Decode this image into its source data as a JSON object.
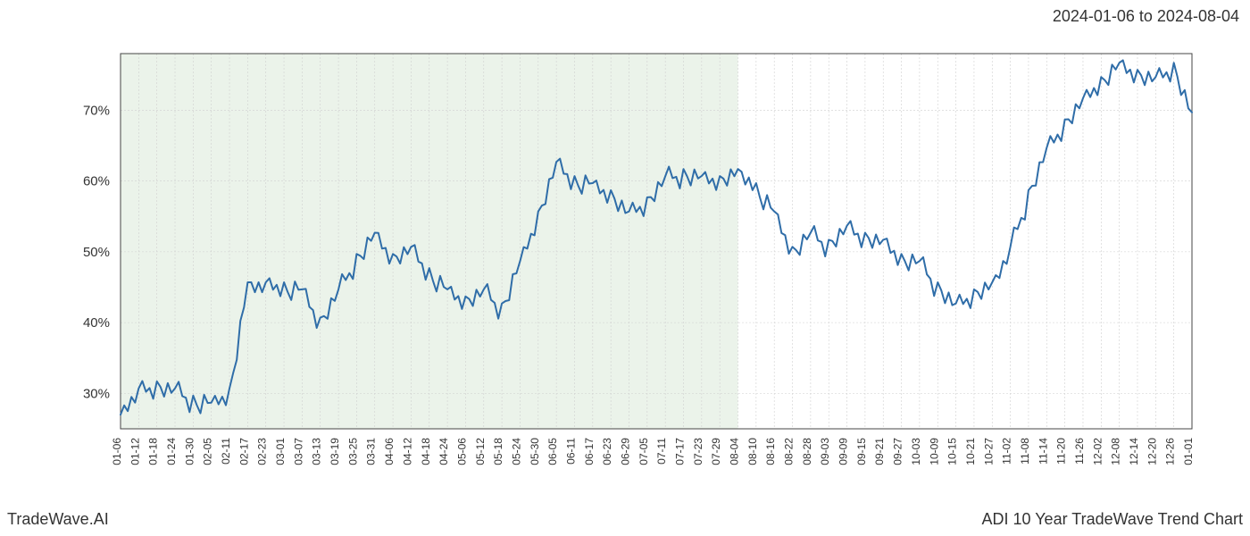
{
  "header": {
    "date_range": "2024-01-06 to 2024-08-04"
  },
  "footer": {
    "left": "TradeWave.AI",
    "right": "ADI 10 Year TradeWave Trend Chart"
  },
  "chart": {
    "type": "line",
    "background_color": "#ffffff",
    "grid_color": "#d0d0d0",
    "border_color": "#444444",
    "line_color": "#2f6da8",
    "line_width": 2,
    "highlight_fill": "#c7dcc2",
    "highlight_opacity": 0.35,
    "highlight_start": "01-06",
    "highlight_end": "08-04",
    "y_axis": {
      "min": 25,
      "max": 78,
      "ticks": [
        30,
        40,
        50,
        60,
        70
      ],
      "tick_labels": [
        "30%",
        "40%",
        "50%",
        "60%",
        "70%"
      ],
      "label_fontsize": 15
    },
    "x_axis": {
      "ticks": [
        "01-06",
        "01-12",
        "01-18",
        "01-24",
        "01-30",
        "02-05",
        "02-11",
        "02-17",
        "02-23",
        "03-01",
        "03-07",
        "03-13",
        "03-19",
        "03-25",
        "03-31",
        "04-06",
        "04-12",
        "04-18",
        "04-24",
        "05-06",
        "05-12",
        "05-18",
        "05-24",
        "05-30",
        "06-05",
        "06-11",
        "06-17",
        "06-23",
        "06-29",
        "07-05",
        "07-11",
        "07-17",
        "07-23",
        "07-29",
        "08-04",
        "08-10",
        "08-16",
        "08-22",
        "08-28",
        "09-03",
        "09-09",
        "09-15",
        "09-21",
        "09-27",
        "10-03",
        "10-09",
        "10-15",
        "10-21",
        "10-27",
        "11-02",
        "11-08",
        "11-14",
        "11-20",
        "11-26",
        "12-02",
        "12-08",
        "12-14",
        "12-20",
        "12-26",
        "01-01"
      ],
      "label_fontsize": 12
    },
    "series": {
      "x": [
        "01-06",
        "01-12",
        "01-18",
        "01-24",
        "01-30",
        "02-05",
        "02-11",
        "02-17",
        "02-23",
        "03-01",
        "03-07",
        "03-13",
        "03-19",
        "03-25",
        "03-31",
        "04-06",
        "04-12",
        "04-18",
        "04-24",
        "05-06",
        "05-12",
        "05-18",
        "05-24",
        "05-30",
        "06-05",
        "06-11",
        "06-17",
        "06-23",
        "06-29",
        "07-05",
        "07-11",
        "07-17",
        "07-23",
        "07-29",
        "08-04",
        "08-10",
        "08-16",
        "08-22",
        "08-28",
        "09-03",
        "09-09",
        "09-15",
        "09-21",
        "09-27",
        "10-03",
        "10-09",
        "10-15",
        "10-21",
        "10-27",
        "11-02",
        "11-08",
        "11-14",
        "11-20",
        "11-26",
        "12-02",
        "12-08",
        "12-14",
        "12-20",
        "12-26",
        "01-01"
      ],
      "y": [
        27,
        30,
        31,
        30,
        29,
        28,
        30,
        45,
        45,
        45,
        44,
        40,
        44,
        49,
        52,
        49,
        50,
        47,
        44,
        43,
        44,
        42,
        48,
        55,
        62,
        60,
        59,
        58,
        55,
        57,
        60,
        61,
        60,
        60,
        61,
        59,
        55,
        50,
        52,
        51,
        53,
        52,
        51,
        49,
        48,
        45,
        42,
        44,
        45,
        50,
        58,
        64,
        68,
        71,
        74,
        76,
        75,
        74,
        76,
        69
      ],
      "jitter": [
        0,
        1.5,
        -1,
        2,
        -2,
        1,
        -1.5,
        0,
        1,
        -2,
        1.5,
        -1,
        2,
        -1.5,
        1,
        -1,
        1.5,
        -2,
        1,
        -1,
        2,
        -1.5,
        1,
        -1,
        1.5,
        -2,
        1,
        -1,
        1.5,
        -1,
        2,
        -1.5,
        1,
        -1,
        0,
        -2,
        1,
        -1.5,
        2,
        -1,
        1.5,
        -1,
        1,
        -1.5,
        2,
        -1,
        1.5,
        -1,
        0,
        2,
        -1,
        1.5,
        -1,
        1,
        -1.5,
        1,
        -1,
        1.5,
        -1,
        0
      ]
    }
  }
}
